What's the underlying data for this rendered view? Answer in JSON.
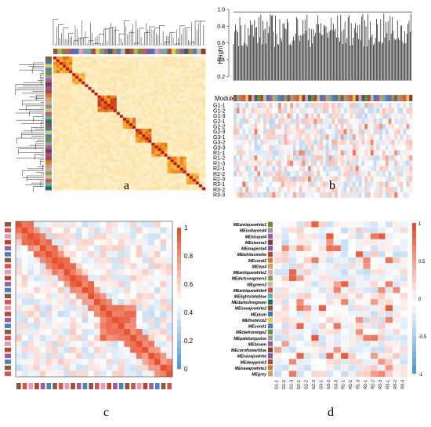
{
  "figure": {
    "labels": {
      "a": "a",
      "b": "b",
      "c": "c",
      "d": "d"
    }
  },
  "panel_b": {
    "ylabel": "Height",
    "yticks": [
      "0.2",
      "0.4",
      "0.6",
      "0.8",
      "1.0"
    ],
    "module_label": "Module",
    "rows": [
      "G1-1",
      "G1-2",
      "G1-3",
      "G2-1",
      "G2-2",
      "G2-3",
      "G3-1",
      "G3-2",
      "G3-3",
      "R1-1",
      "R1-2",
      "R1-3",
      "R2-1",
      "R2-2",
      "R2-3",
      "R3-1",
      "R3-2",
      "R3-3"
    ]
  },
  "panel_c": {
    "ticks": [
      "1",
      "0.8",
      "0.6",
      "0.4",
      "0.2",
      "0"
    ]
  },
  "panel_d": {
    "modules": [
      "MEantiquewhite1",
      "MEindianred4",
      "MEbisque4",
      "MEsienna3",
      "MEmagenta4",
      "MEwhitesmoke",
      "MEcoral2",
      "MEtan4",
      "MEantiquewhite2",
      "MEdarkseagreen3",
      "MEgreen3",
      "MEantiquewhite4",
      "MElightslateblue",
      "MEdarkolivegreen",
      "MEnavajowhite2",
      "MEplum",
      "MEfirebrick2",
      "MEcoral1",
      "MEdarkorange2",
      "MEpaleturquoise",
      "MEbrown",
      "MEcornflowerblue",
      "MEnavajowhite",
      "MEdeeppink3",
      "MEnavajowhite3",
      "MEgrey"
    ],
    "samples": [
      "G1-1",
      "G1-2",
      "G1-3",
      "G2-1",
      "G2-2",
      "G2-3",
      "G3-1",
      "G3-2",
      "G3-3",
      "R1-1",
      "R1-2",
      "R1-3",
      "R2-1",
      "R2-2",
      "R2-3",
      "R3-1",
      "R3-2",
      "R3-3"
    ],
    "scale": [
      "1",
      "0.5",
      "0",
      "-0.5",
      "-1"
    ]
  },
  "colors": {
    "heat_low": "#fffbe0",
    "heat_mid": "#f5a623",
    "heat_high": "#c0171a",
    "corr_pos": "#e8512f",
    "corr_neg": "#3d8fd9"
  }
}
